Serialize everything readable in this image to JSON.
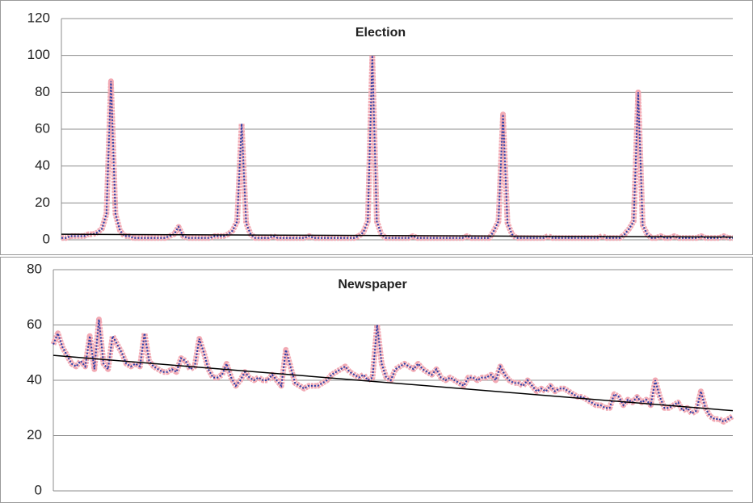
{
  "chart_data": [
    {
      "type": "line",
      "title": "Election",
      "ylim": [
        0,
        120
      ],
      "yticks": [
        0,
        20,
        40,
        60,
        80,
        100,
        120
      ],
      "grid": true,
      "series": [
        {
          "color": "#2a3fa8",
          "values": [
            1,
            1,
            2,
            2,
            2,
            2,
            3,
            3,
            4,
            6,
            14,
            86,
            14,
            5,
            2,
            2,
            1,
            1,
            1,
            1,
            1,
            1,
            1,
            1,
            2,
            3,
            7,
            2,
            1,
            1,
            1,
            1,
            1,
            1,
            2,
            2,
            2,
            3,
            5,
            10,
            63,
            9,
            3,
            1,
            1,
            1,
            1,
            2,
            1,
            1,
            1,
            1,
            1,
            1,
            1,
            2,
            1,
            1,
            1,
            1,
            1,
            1,
            1,
            1,
            1,
            1,
            2,
            4,
            10,
            100,
            10,
            3,
            1,
            1,
            1,
            1,
            1,
            1,
            2,
            1,
            1,
            1,
            1,
            1,
            1,
            1,
            1,
            1,
            1,
            1,
            2,
            1,
            1,
            1,
            1,
            1,
            5,
            10,
            68,
            9,
            3,
            1,
            1,
            1,
            1,
            1,
            1,
            1,
            2,
            1,
            1,
            1,
            1,
            1,
            1,
            1,
            1,
            1,
            1,
            1,
            2,
            1,
            1,
            1,
            1,
            3,
            6,
            10,
            80,
            8,
            3,
            1,
            1,
            2,
            1,
            1,
            2,
            1,
            1,
            1,
            1,
            1,
            2,
            1,
            1,
            1,
            1,
            2,
            1,
            1
          ]
        }
      ],
      "trend": {
        "color": "#000000",
        "values": [
          3,
          1.5
        ]
      }
    },
    {
      "type": "line",
      "title": "Newspaper",
      "ylim": [
        0,
        80
      ],
      "yticks": [
        0,
        20,
        40,
        60,
        80
      ],
      "grid": true,
      "series": [
        {
          "color": "#2a3fa8",
          "values": [
            53,
            57,
            52,
            49,
            46,
            45,
            47,
            45,
            56,
            44,
            62,
            46,
            44,
            56,
            53,
            50,
            46,
            45,
            46,
            45,
            57,
            47,
            45,
            44,
            43,
            43,
            44,
            43,
            48,
            47,
            44,
            45,
            55,
            50,
            44,
            41,
            41,
            42,
            46,
            41,
            38,
            40,
            43,
            41,
            40,
            41,
            40,
            40,
            42,
            40,
            38,
            51,
            45,
            39,
            38,
            37,
            38,
            38,
            38,
            39,
            40,
            42,
            43,
            44,
            45,
            43,
            42,
            41,
            42,
            40,
            41,
            60,
            46,
            41,
            40,
            44,
            45,
            46,
            45,
            44,
            46,
            44,
            43,
            42,
            44,
            41,
            40,
            41,
            40,
            39,
            38,
            41,
            41,
            40,
            41,
            41,
            42,
            40,
            45,
            42,
            40,
            39,
            39,
            38,
            40,
            38,
            36,
            37,
            36,
            38,
            36,
            37,
            37,
            36,
            35,
            34,
            34,
            33,
            32,
            31,
            31,
            30,
            30,
            35,
            34,
            31,
            33,
            32,
            34,
            32,
            33,
            31,
            40,
            34,
            30,
            30,
            31,
            32,
            29,
            30,
            28,
            29,
            36,
            30,
            27,
            26,
            26,
            25,
            26,
            27
          ]
        }
      ],
      "trend": {
        "color": "#000000",
        "values": [
          49,
          29
        ]
      }
    }
  ]
}
